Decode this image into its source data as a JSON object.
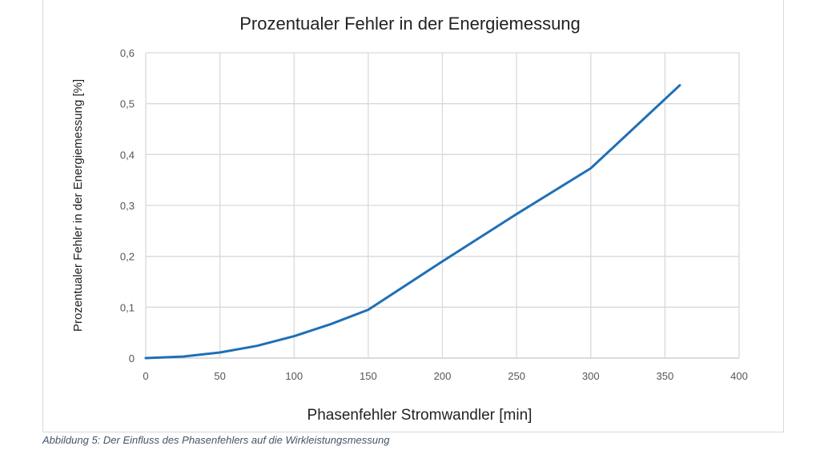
{
  "chart_data": {
    "type": "line",
    "title": "Prozentualer Fehler in der Energiemessung",
    "xlabel": "Phasenfehler Stromwandler [min]",
    "ylabel": "Prozentualer Fehler in der Energiemessung [%]",
    "xlim": [
      0,
      400
    ],
    "ylim": [
      0,
      0.6
    ],
    "xticks": [
      "0",
      "50",
      "100",
      "150",
      "200",
      "250",
      "300",
      "350",
      "400"
    ],
    "yticks": [
      "0",
      "0,1",
      "0,2",
      "0,3",
      "0,4",
      "0,5",
      "0,6"
    ],
    "grid": true,
    "legend": "none",
    "series": [
      {
        "color": "#1f6fb5",
        "x": [
          0,
          25,
          50,
          75,
          100,
          125,
          150,
          200,
          250,
          300,
          360
        ],
        "y": [
          0,
          0.003,
          0.011,
          0.024,
          0.043,
          0.067,
          0.095,
          0.19,
          0.283,
          0.373,
          0.536
        ]
      }
    ]
  },
  "caption": "Abbildung 5: Der Einfluss des Phasenfehlers auf die Wirkleistungsmessung"
}
